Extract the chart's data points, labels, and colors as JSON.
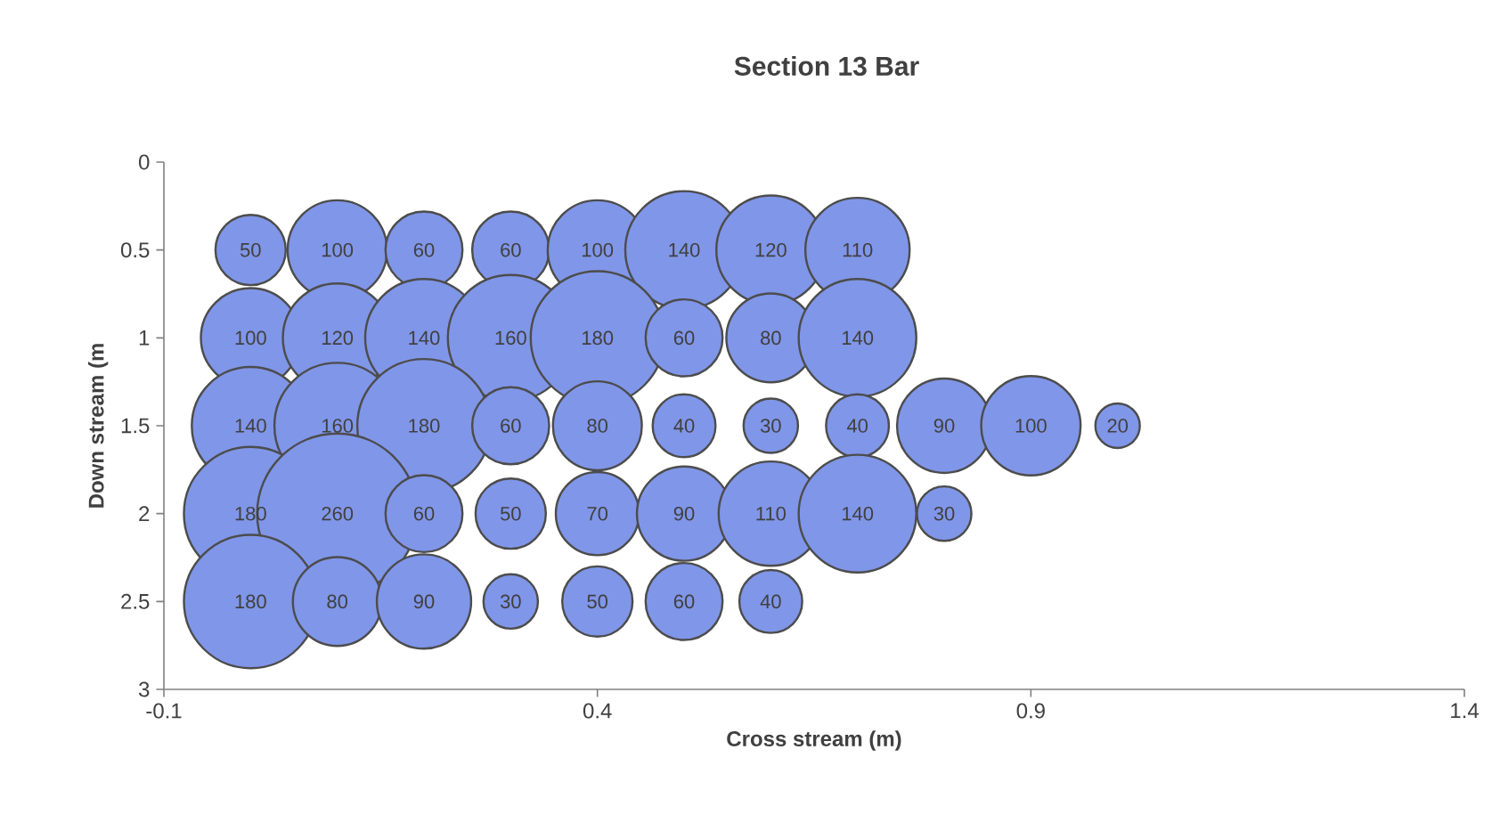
{
  "chart_data": {
    "type": "bubble",
    "title": "Section 13 Bar",
    "xlabel": "Cross stream (m)",
    "ylabel": "Down stream (m",
    "xlim": [
      -0.1,
      1.4
    ],
    "xticks": [
      -0.1,
      0.4,
      0.9,
      1.4
    ],
    "ylim": [
      3,
      0
    ],
    "yticks": [
      0,
      0.5,
      1,
      1.5,
      2,
      2.5,
      3
    ],
    "grid": false,
    "series": [
      {
        "color": "#8096e8",
        "x": [
          0,
          0.1,
          0.2,
          0.3,
          0.4,
          0.5,
          0.6,
          0.7,
          0,
          0.1,
          0.2,
          0.3,
          0.4,
          0.5,
          0.6,
          0.7,
          0,
          0.1,
          0.2,
          0.3,
          0.4,
          0.5,
          0.6,
          0.7,
          0.8,
          0.9,
          1.0,
          0,
          0.1,
          0.2,
          0.3,
          0.4,
          0.5,
          0.6,
          0.7,
          0.8,
          0,
          0.1,
          0.2,
          0.3,
          0.4,
          0.5,
          0.6
        ],
        "values": [
          0.5,
          0.5,
          0.5,
          0.5,
          0.5,
          0.5,
          0.5,
          0.5,
          1,
          1,
          1,
          1,
          1,
          1,
          1,
          1,
          1.5,
          1.5,
          1.5,
          1.5,
          1.5,
          1.5,
          1.5,
          1.5,
          1.5,
          1.5,
          1.5,
          2,
          2,
          2,
          2,
          2,
          2,
          2,
          2,
          2,
          2.5,
          2.5,
          2.5,
          2.5,
          2.5,
          2.5,
          2.5
        ],
        "sizes": [
          50,
          100,
          60,
          60,
          100,
          140,
          120,
          110,
          100,
          120,
          140,
          160,
          180,
          60,
          80,
          140,
          140,
          160,
          180,
          60,
          80,
          40,
          30,
          40,
          90,
          100,
          20,
          180,
          260,
          60,
          50,
          70,
          90,
          110,
          140,
          30,
          180,
          80,
          90,
          30,
          50,
          60,
          40
        ],
        "value_labels": [
          "50",
          "100",
          "60",
          "60",
          "100",
          "140",
          "120",
          "110",
          "100",
          "120",
          "140",
          "160",
          "180",
          "60",
          "80",
          "140",
          "140",
          "160",
          "180",
          "60",
          "80",
          "40",
          "30",
          "40",
          "90",
          "100",
          "20",
          "180",
          "260",
          "60",
          "50",
          "70",
          "90",
          "110",
          "140",
          "30",
          "180",
          "80",
          "90",
          "30",
          "50",
          "60",
          "40"
        ]
      }
    ]
  }
}
